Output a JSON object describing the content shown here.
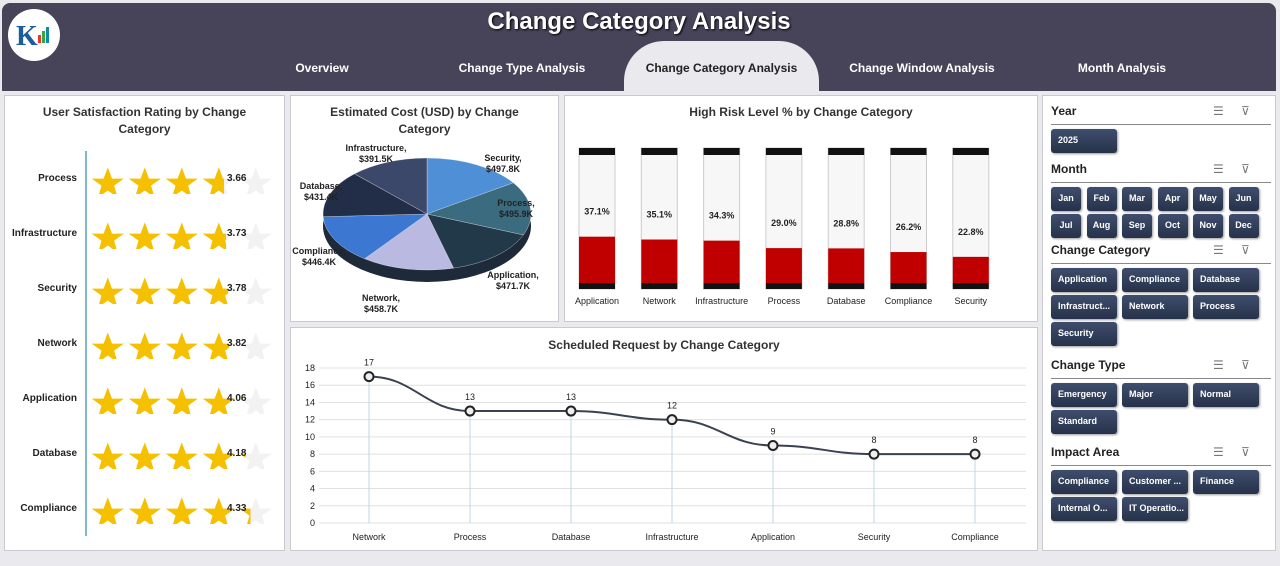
{
  "header": {
    "title": "Change Category Analysis",
    "tabs": [
      "Overview",
      "Change Type Analysis",
      "Change Category Analysis",
      "Change Window Analysis",
      "Month Analysis"
    ],
    "active_tab": 2
  },
  "satisfaction": {
    "title": "User Satisfaction Rating by Change Category",
    "max": 5,
    "rows": [
      {
        "label": "Process",
        "value": 3.66
      },
      {
        "label": "Infrastructure",
        "value": 3.73
      },
      {
        "label": "Security",
        "value": 3.78
      },
      {
        "label": "Network",
        "value": 3.82
      },
      {
        "label": "Application",
        "value": 4.06
      },
      {
        "label": "Database",
        "value": 4.18
      },
      {
        "label": "Compliance",
        "value": 4.33
      }
    ],
    "star_color": "#f5c000"
  },
  "chart_data": [
    {
      "type": "pie",
      "title": "Estimated Cost (USD) by Change Category",
      "slices": [
        {
          "label": "Security",
          "value": 497.8,
          "text": "Security, $497.8K",
          "color": "#4f8fd6"
        },
        {
          "label": "Process",
          "value": 495.9,
          "text": "Process, $495.9K",
          "color": "#3b6b7e"
        },
        {
          "label": "Application",
          "value": 471.7,
          "text": "Application, $471.7K",
          "color": "#22394a"
        },
        {
          "label": "Network",
          "value": 458.7,
          "text": "Network, $458.7K",
          "color": "#b9b9e2"
        },
        {
          "label": "Compliance",
          "value": 446.4,
          "text": "Compliance, $446.4K",
          "color": "#3c78d2"
        },
        {
          "label": "Database",
          "value": 431.4,
          "text": "Database, $431.4K",
          "color": "#222e47"
        },
        {
          "label": "Infrastructure",
          "value": 391.5,
          "text": "Infrastructure, $391.5K",
          "color": "#3c4869"
        }
      ]
    },
    {
      "type": "bar",
      "title": "High Risk Level % by Change Category",
      "categories": [
        "Application",
        "Network",
        "Infrastructure",
        "Process",
        "Database",
        "Compliance",
        "Security"
      ],
      "values": [
        37.1,
        35.1,
        34.3,
        29.0,
        28.8,
        26.2,
        22.8
      ],
      "labels": [
        "37.1%",
        "35.1%",
        "34.3%",
        "29.0%",
        "28.8%",
        "26.2%",
        "22.8%"
      ],
      "ylim": [
        0,
        100
      ],
      "color": "#c00000"
    },
    {
      "type": "line",
      "title": "Scheduled Request by Change Category",
      "categories": [
        "Network",
        "Process",
        "Database",
        "Infrastructure",
        "Application",
        "Security",
        "Compliance"
      ],
      "values": [
        17,
        13,
        13,
        12,
        9,
        8,
        8
      ],
      "ylim": [
        0,
        18
      ],
      "yticks": [
        0,
        2,
        4,
        6,
        8,
        10,
        12,
        14,
        16,
        18
      ],
      "grid": true
    }
  ],
  "slicers": {
    "year": {
      "title": "Year",
      "items": [
        "2025"
      ]
    },
    "month": {
      "title": "Month",
      "items": [
        "Jan",
        "Feb",
        "Mar",
        "Apr",
        "May",
        "Jun",
        "Jul",
        "Aug",
        "Sep",
        "Oct",
        "Nov",
        "Dec"
      ]
    },
    "category": {
      "title": "Change Category",
      "items": [
        "Application",
        "Compliance",
        "Database",
        "Infrastruct...",
        "Network",
        "Process",
        "Security"
      ]
    },
    "type": {
      "title": "Change Type",
      "items": [
        "Emergency",
        "Major",
        "Normal",
        "Standard"
      ]
    },
    "impact": {
      "title": "Impact Area",
      "items": [
        "Compliance",
        "Customer ...",
        "Finance",
        "Internal O...",
        "IT Operatio..."
      ]
    }
  }
}
